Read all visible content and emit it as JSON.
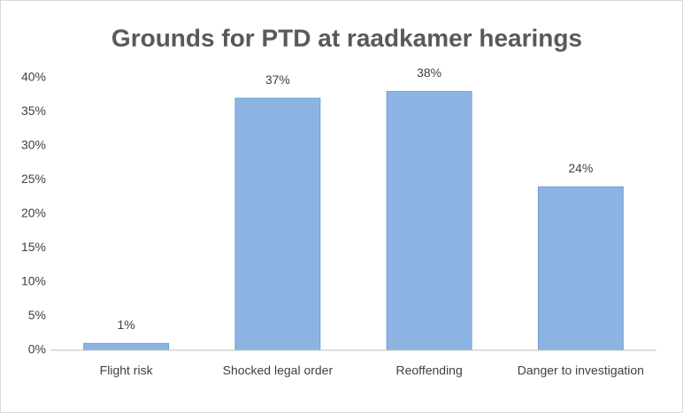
{
  "chart_data": {
    "type": "bar",
    "title": "Grounds for PTD at raadkamer hearings",
    "categories": [
      "Flight risk",
      "Shocked legal order",
      "Reoffending",
      "Danger to investigation"
    ],
    "values": [
      1,
      37,
      38,
      24
    ],
    "value_labels": [
      "1%",
      "37%",
      "38%",
      "24%"
    ],
    "color": "#8db3e2",
    "ylim": [
      0,
      40
    ],
    "yticks": [
      {
        "value": 0,
        "label": "0%"
      },
      {
        "value": 5,
        "label": "5%"
      },
      {
        "value": 10,
        "label": "10%"
      },
      {
        "value": 15,
        "label": "15%"
      },
      {
        "value": 20,
        "label": "20%"
      },
      {
        "value": 25,
        "label": "25%"
      },
      {
        "value": 30,
        "label": "30%"
      },
      {
        "value": 35,
        "label": "35%"
      },
      {
        "value": 40,
        "label": "40%"
      }
    ],
    "grid": false
  }
}
